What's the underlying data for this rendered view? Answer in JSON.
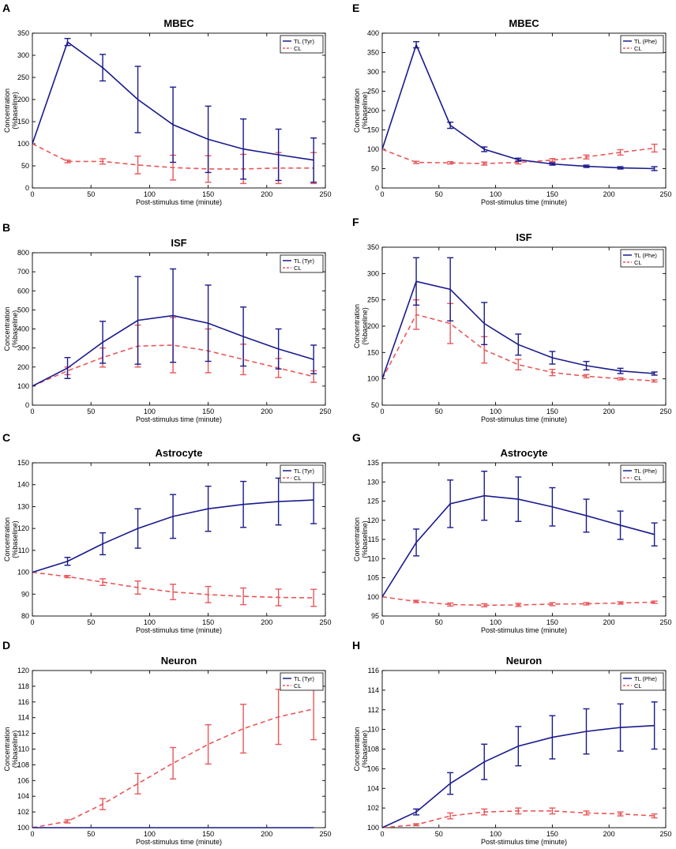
{
  "chart_data": [
    {
      "id": "A",
      "panel_letter": "A",
      "type": "line",
      "title": "MBEC",
      "xlabel": "Post-stimulus time (minute)",
      "ylabel": [
        "Concentration",
        "(%baseline)"
      ],
      "xlim": [
        0,
        250
      ],
      "ylim": [
        0,
        350
      ],
      "xticks": [
        0,
        50,
        100,
        150,
        200,
        250
      ],
      "yticks": [
        0,
        50,
        100,
        150,
        200,
        250,
        300,
        350
      ],
      "x": [
        0,
        30,
        60,
        90,
        120,
        150,
        180,
        210,
        240
      ],
      "series": [
        {
          "name": "TL (Tyr)",
          "color": "#1a1a8c",
          "style": "solid",
          "values": [
            100,
            330,
            272,
            200,
            143,
            110,
            88,
            75,
            63
          ],
          "errors": [
            0,
            8,
            30,
            75,
            85,
            75,
            68,
            58,
            50
          ]
        },
        {
          "name": "CL",
          "color": "#e8575a",
          "style": "dashed",
          "values": [
            100,
            60,
            60,
            52,
            46,
            43,
            43,
            45,
            45
          ],
          "errors": [
            0,
            3,
            6,
            20,
            28,
            30,
            33,
            35,
            35
          ]
        }
      ]
    },
    {
      "id": "E",
      "panel_letter": "E",
      "type": "line",
      "title": "MBEC",
      "xlabel": "Post-stimulus time (minute)",
      "ylabel": [
        "Concentration",
        "(%baseline)"
      ],
      "xlim": [
        0,
        250
      ],
      "ylim": [
        0,
        400
      ],
      "xticks": [
        0,
        50,
        100,
        150,
        200,
        250
      ],
      "yticks": [
        0,
        50,
        100,
        150,
        200,
        250,
        300,
        350,
        400
      ],
      "x": [
        0,
        30,
        60,
        90,
        120,
        150,
        180,
        210,
        240
      ],
      "series": [
        {
          "name": "TL (Phe)",
          "color": "#1a1a8c",
          "style": "solid",
          "values": [
            100,
            370,
            162,
            100,
            73,
            62,
            56,
            52,
            50
          ],
          "errors": [
            0,
            8,
            8,
            6,
            4,
            3,
            3,
            3,
            5
          ]
        },
        {
          "name": "CL",
          "color": "#e8575a",
          "style": "dashed",
          "values": [
            100,
            66,
            65,
            63,
            66,
            72,
            80,
            92,
            103
          ],
          "errors": [
            0,
            3,
            3,
            4,
            4,
            4,
            5,
            7,
            10
          ]
        }
      ]
    },
    {
      "id": "B",
      "panel_letter": "B",
      "type": "line",
      "title": "ISF",
      "xlabel": "Post-stimulus time (minute)",
      "ylabel": [
        "Concentration",
        "(%baseline)"
      ],
      "xlim": [
        0,
        250
      ],
      "ylim": [
        0,
        800
      ],
      "xticks": [
        0,
        50,
        100,
        150,
        200,
        250
      ],
      "yticks": [
        0,
        100,
        200,
        300,
        400,
        500,
        600,
        700,
        800
      ],
      "x": [
        0,
        30,
        60,
        90,
        120,
        150,
        180,
        210,
        240
      ],
      "series": [
        {
          "name": "TL (Tyr)",
          "color": "#1a1a8c",
          "style": "solid",
          "values": [
            100,
            195,
            330,
            445,
            470,
            430,
            360,
            295,
            240
          ],
          "errors": [
            0,
            55,
            110,
            230,
            245,
            200,
            155,
            105,
            75
          ]
        },
        {
          "name": "CL",
          "color": "#e8575a",
          "style": "dashed",
          "values": [
            100,
            180,
            250,
            310,
            315,
            285,
            240,
            195,
            150
          ],
          "errors": [
            0,
            20,
            50,
            110,
            145,
            115,
            80,
            50,
            30
          ]
        }
      ]
    },
    {
      "id": "F",
      "panel_letter": "F",
      "type": "line",
      "title": "ISF",
      "xlabel": "Post-stimulus time (minute)",
      "ylabel": [
        "Concentration",
        "(%baseline)"
      ],
      "xlim": [
        0,
        250
      ],
      "ylim": [
        50,
        350
      ],
      "xticks": [
        0,
        50,
        100,
        150,
        200,
        250
      ],
      "yticks": [
        50,
        100,
        150,
        200,
        250,
        300,
        350
      ],
      "x": [
        0,
        30,
        60,
        90,
        120,
        150,
        180,
        210,
        240
      ],
      "series": [
        {
          "name": "TL (Phe)",
          "color": "#1a1a8c",
          "style": "solid",
          "values": [
            100,
            285,
            270,
            205,
            165,
            140,
            125,
            115,
            110
          ],
          "errors": [
            0,
            45,
            60,
            40,
            20,
            12,
            8,
            5,
            3
          ]
        },
        {
          "name": "CL",
          "color": "#e8575a",
          "style": "dashed",
          "values": [
            100,
            222,
            205,
            155,
            127,
            112,
            105,
            100,
            96
          ],
          "errors": [
            0,
            28,
            38,
            25,
            10,
            6,
            3,
            2,
            2
          ]
        }
      ]
    },
    {
      "id": "C",
      "panel_letter": "C",
      "type": "line",
      "title": "Astrocyte",
      "xlabel": "Post-stimulus time (minute)",
      "ylabel": [
        "Concentration",
        "(%baseline)"
      ],
      "xlim": [
        0,
        250
      ],
      "ylim": [
        80,
        150
      ],
      "xticks": [
        0,
        50,
        100,
        150,
        200,
        250
      ],
      "yticks": [
        80,
        90,
        100,
        110,
        120,
        130,
        140,
        150
      ],
      "x": [
        0,
        30,
        60,
        90,
        120,
        150,
        180,
        210,
        240
      ],
      "series": [
        {
          "name": "TL (Tyr)",
          "color": "#1a1a8c",
          "style": "solid",
          "values": [
            100,
            105,
            113,
            120,
            125.5,
            129,
            131,
            132.3,
            133
          ],
          "errors": [
            0,
            1.8,
            5,
            9,
            10,
            10.3,
            10.5,
            10.7,
            10.8
          ]
        },
        {
          "name": "CL",
          "color": "#e8575a",
          "style": "dashed",
          "values": [
            100,
            98,
            95.5,
            93,
            91,
            89.8,
            89,
            88.5,
            88.3
          ],
          "errors": [
            0,
            0.5,
            1.5,
            3,
            3.5,
            3.7,
            3.8,
            3.8,
            3.9
          ]
        }
      ]
    },
    {
      "id": "G",
      "panel_letter": "G",
      "type": "line",
      "title": "Astrocyte",
      "xlabel": "Post-stimulus time (minute)",
      "ylabel": [
        "Concentration",
        "(%baseline)"
      ],
      "xlim": [
        0,
        250
      ],
      "ylim": [
        95,
        135
      ],
      "xticks": [
        0,
        50,
        100,
        150,
        200,
        250
      ],
      "yticks": [
        95,
        100,
        105,
        110,
        115,
        120,
        125,
        130,
        135
      ],
      "x": [
        0,
        30,
        60,
        90,
        120,
        150,
        180,
        210,
        240
      ],
      "series": [
        {
          "name": "TL (Phe)",
          "color": "#1a1a8c",
          "style": "solid",
          "values": [
            100,
            114.2,
            124.3,
            126.4,
            125.5,
            123.5,
            121.2,
            118.7,
            116.3
          ],
          "errors": [
            0,
            3.5,
            6.2,
            6.4,
            5.8,
            5,
            4.3,
            3.7,
            3
          ]
        },
        {
          "name": "CL",
          "color": "#e8575a",
          "style": "dashed",
          "values": [
            100,
            98.8,
            98,
            97.8,
            97.9,
            98.1,
            98.2,
            98.4,
            98.6
          ],
          "errors": [
            0,
            0.3,
            0.4,
            0.4,
            0.4,
            0.4,
            0.3,
            0.3,
            0.3
          ]
        }
      ]
    },
    {
      "id": "D",
      "panel_letter": "D",
      "type": "line",
      "title": "Neuron",
      "xlabel": "Post-stimulus time (minute)",
      "ylabel": [
        "Concentration",
        "(%baseline)"
      ],
      "xlim": [
        0,
        250
      ],
      "ylim": [
        100,
        120
      ],
      "xticks": [
        0,
        50,
        100,
        150,
        200,
        250
      ],
      "yticks": [
        100,
        102,
        104,
        106,
        108,
        110,
        112,
        114,
        116,
        118,
        120
      ],
      "x": [
        0,
        30,
        60,
        90,
        120,
        150,
        180,
        210,
        240
      ],
      "series": [
        {
          "name": "TL (Tyr)",
          "color": "#1a1a8c",
          "style": "solid",
          "values": [
            100,
            100,
            100,
            100,
            100,
            100,
            100,
            100,
            100
          ],
          "errors": [
            0,
            0,
            0,
            0,
            0,
            0,
            0,
            0,
            0
          ]
        },
        {
          "name": "CL",
          "color": "#e8575a",
          "style": "dashed",
          "values": [
            100,
            100.8,
            103,
            105.6,
            108.2,
            110.6,
            112.6,
            114.1,
            115.1
          ],
          "errors": [
            0,
            0.2,
            0.7,
            1.3,
            2,
            2.5,
            3.1,
            3.5,
            3.9
          ]
        }
      ]
    },
    {
      "id": "H",
      "panel_letter": "H",
      "type": "line",
      "title": "Neuron",
      "xlabel": "Post-stimulus time (minute)",
      "ylabel": [
        "Concentration",
        "(%baseline)"
      ],
      "xlim": [
        0,
        250
      ],
      "ylim": [
        100,
        116
      ],
      "xticks": [
        0,
        50,
        100,
        150,
        200,
        250
      ],
      "yticks": [
        100,
        102,
        104,
        106,
        108,
        110,
        112,
        114,
        116
      ],
      "x": [
        0,
        30,
        60,
        90,
        120,
        150,
        180,
        210,
        240
      ],
      "series": [
        {
          "name": "TL (Phe)",
          "color": "#1a1a8c",
          "style": "solid",
          "values": [
            100,
            101.6,
            104.5,
            106.7,
            108.3,
            109.2,
            109.8,
            110.2,
            110.4
          ],
          "errors": [
            0,
            0.3,
            1.1,
            1.8,
            2,
            2.2,
            2.3,
            2.4,
            2.4
          ]
        },
        {
          "name": "CL",
          "color": "#e8575a",
          "style": "dashed",
          "values": [
            100,
            100.3,
            101.2,
            101.6,
            101.7,
            101.7,
            101.5,
            101.4,
            101.2
          ],
          "errors": [
            0,
            0.1,
            0.3,
            0.3,
            0.3,
            0.3,
            0.2,
            0.2,
            0.2
          ]
        }
      ]
    }
  ]
}
